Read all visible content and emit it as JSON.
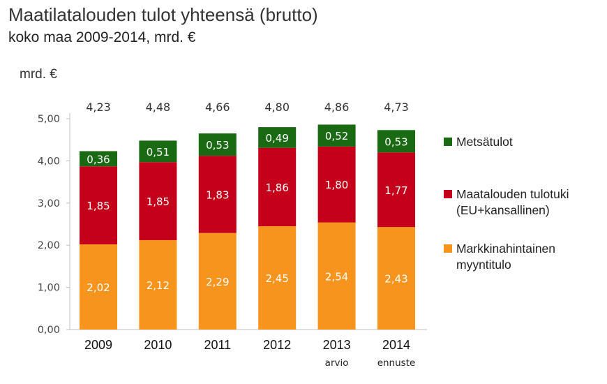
{
  "chart_data": {
    "type": "bar",
    "stacked": true,
    "title": "Maatilatalouden tulot yhteensä (brutto)",
    "subtitle": "koko maa 2009-2014, mrd. €",
    "ylabel": "mrd. €",
    "ylim": [
      0,
      5
    ],
    "yticks": [
      "0,00",
      "1,00",
      "2,00",
      "3,00",
      "4,00",
      "5,00"
    ],
    "categories": [
      "2009",
      "2010",
      "2011",
      "2012",
      "2013",
      "2014"
    ],
    "category_notes": [
      "",
      "",
      "",
      "",
      "arvio",
      "ennuste"
    ],
    "totals": [
      "4,23",
      "4,48",
      "4,66",
      "4,80",
      "4,86",
      "4,73"
    ],
    "series": [
      {
        "name": "Markkinahintainen myyntitulo",
        "color": "#f7941d",
        "values": [
          2.02,
          2.12,
          2.29,
          2.45,
          2.54,
          2.43
        ],
        "labels": [
          "2,02",
          "2,12",
          "2,29",
          "2,45",
          "2,54",
          "2,43"
        ]
      },
      {
        "name": "Maatalouden tulotuki (EU+kansallinen)",
        "color": "#c4001a",
        "values": [
          1.85,
          1.85,
          1.83,
          1.86,
          1.8,
          1.77
        ],
        "labels": [
          "1,85",
          "1,85",
          "1,83",
          "1,86",
          "1,80",
          "1,77"
        ]
      },
      {
        "name": "Metsätulot",
        "color": "#1a6a14",
        "values": [
          0.36,
          0.51,
          0.53,
          0.49,
          0.52,
          0.53
        ],
        "labels": [
          "0,36",
          "0,51",
          "0,53",
          "0,49",
          "0,52",
          "0,53"
        ]
      }
    ],
    "legend_position": "right",
    "grid": false
  }
}
